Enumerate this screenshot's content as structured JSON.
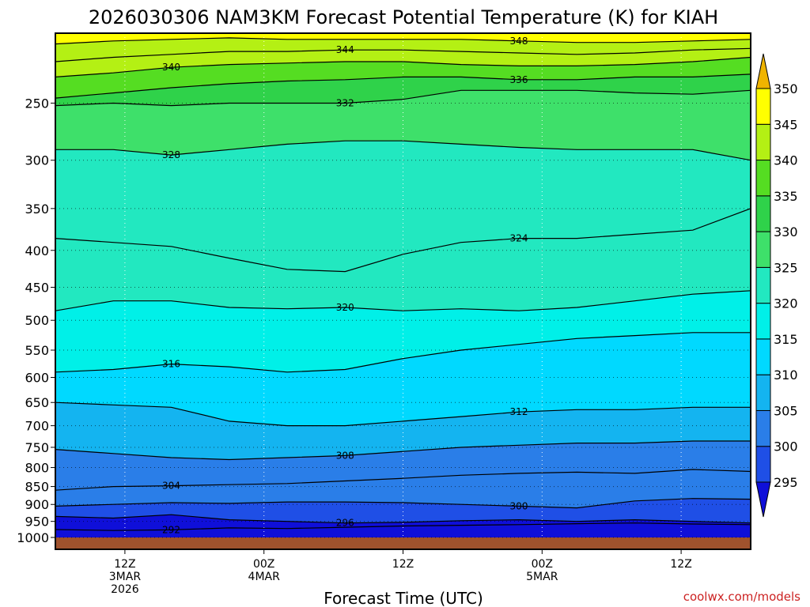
{
  "chart_data": {
    "type": "heatmap",
    "title": "2026030306 NAM3KM Forecast Potential Temperature (K) for KIAH",
    "xlabel": "Forecast Time (UTC)",
    "ylabel": "",
    "credit": "coolwx.com/models",
    "y_pressure_ticks": [
      250,
      300,
      350,
      400,
      450,
      500,
      550,
      600,
      650,
      700,
      750,
      800,
      850,
      900,
      950,
      1000
    ],
    "ylim": [
      1000,
      200
    ],
    "x_ticks": [
      {
        "hour": 6,
        "lines": [
          "12Z",
          "3MAR",
          "2026"
        ]
      },
      {
        "hour": 18,
        "lines": [
          "00Z",
          "4MAR"
        ]
      },
      {
        "hour": 30,
        "lines": [
          "12Z"
        ]
      },
      {
        "hour": 42,
        "lines": [
          "00Z",
          "5MAR"
        ]
      },
      {
        "hour": 54,
        "lines": [
          "12Z"
        ]
      }
    ],
    "xlim": [
      0,
      60
    ],
    "colorbar": {
      "levels": [
        295,
        300,
        305,
        310,
        315,
        320,
        325,
        330,
        335,
        340,
        345,
        350
      ],
      "colors": [
        "#0f0fd9",
        "#1f4fe6",
        "#2a7ee8",
        "#14b4f0",
        "#00d9ff",
        "#00f0e8",
        "#22e8c0",
        "#3ee06a",
        "#2fd24a",
        "#55dd22",
        "#b4f014",
        "#ffff00",
        "#f0b400"
      ]
    },
    "series": [
      {
        "theta": 292,
        "pressure": [
          975,
          978,
          976,
          970,
          972,
          968,
          964,
          962,
          960,
          957,
          955,
          958,
          960
        ]
      },
      {
        "theta": 296,
        "pressure": [
          935,
          940,
          930,
          945,
          950,
          955,
          953,
          948,
          945,
          950,
          945,
          950,
          955
        ]
      },
      {
        "theta": 300,
        "pressure": [
          905,
          900,
          895,
          897,
          893,
          893,
          895,
          900,
          905,
          910,
          890,
          883,
          885
        ]
      },
      {
        "theta": 304,
        "pressure": [
          860,
          850,
          848,
          845,
          842,
          835,
          828,
          820,
          815,
          812,
          815,
          805,
          810
        ]
      },
      {
        "theta": 308,
        "pressure": [
          755,
          765,
          775,
          780,
          775,
          770,
          760,
          750,
          745,
          740,
          740,
          735,
          735
        ]
      },
      {
        "theta": 312,
        "pressure": [
          650,
          655,
          660,
          690,
          700,
          700,
          690,
          680,
          670,
          665,
          665,
          660,
          660
        ]
      },
      {
        "theta": 316,
        "pressure": [
          590,
          585,
          575,
          580,
          590,
          585,
          565,
          550,
          540,
          530,
          525,
          520,
          520
        ]
      },
      {
        "theta": 320,
        "pressure": [
          485,
          470,
          470,
          480,
          482,
          480,
          485,
          482,
          485,
          480,
          470,
          460,
          455
        ]
      },
      {
        "theta": 324,
        "pressure": [
          385,
          390,
          395,
          410,
          425,
          428,
          405,
          390,
          385,
          385,
          380,
          375,
          350
        ]
      },
      {
        "theta": 328,
        "pressure": [
          290,
          290,
          295,
          290,
          285,
          282,
          282,
          285,
          288,
          290,
          290,
          290,
          300
        ]
      },
      {
        "theta": 332,
        "pressure": [
          252,
          250,
          252,
          250,
          250,
          250,
          247,
          240,
          240,
          240,
          242,
          243,
          240
        ]
      },
      {
        "theta": 336,
        "pressure": [
          246,
          242,
          238,
          235,
          233,
          232,
          230,
          230,
          232,
          232,
          230,
          230,
          228
        ]
      },
      {
        "theta": 340,
        "pressure": [
          230,
          227,
          223,
          221,
          220,
          219,
          219,
          221,
          222,
          222,
          221,
          219,
          216
        ]
      },
      {
        "theta": 344,
        "pressure": [
          219,
          216,
          214,
          212,
          212,
          211,
          211,
          212,
          213,
          214,
          213,
          211,
          210
        ]
      },
      {
        "theta": 348,
        "pressure": [
          207,
          205,
          204,
          203,
          204,
          204,
          204,
          204,
          205,
          206,
          206,
          205,
          204
        ]
      }
    ],
    "series_x_hours": [
      0,
      5,
      10,
      15,
      20,
      25,
      30,
      35,
      40,
      45,
      50,
      55,
      60
    ]
  }
}
